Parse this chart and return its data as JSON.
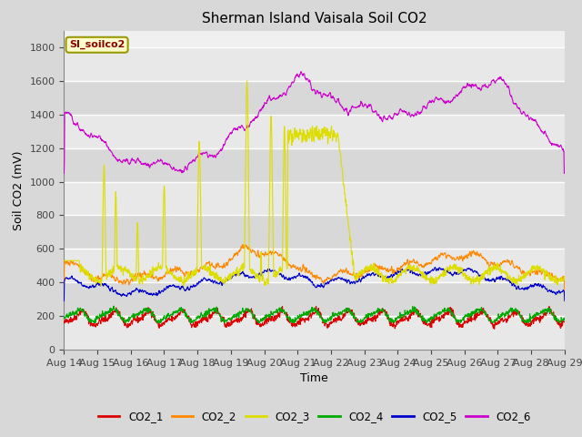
{
  "title": "Sherman Island Vaisala Soil CO2",
  "xlabel": "Time",
  "ylabel": "Soil CO2 (mV)",
  "ylim": [
    0,
    1900
  ],
  "yticks": [
    0,
    200,
    400,
    600,
    800,
    1000,
    1200,
    1400,
    1600,
    1800
  ],
  "x_labels": [
    "Aug 14",
    "Aug 15",
    "Aug 16",
    "Aug 17",
    "Aug 18",
    "Aug 19",
    "Aug 20",
    "Aug 21",
    "Aug 22",
    "Aug 23",
    "Aug 24",
    "Aug 25",
    "Aug 26",
    "Aug 27",
    "Aug 28",
    "Aug 29"
  ],
  "legend_label": "SI_soilco2",
  "series_colors": {
    "CO2_1": "#dd0000",
    "CO2_2": "#ff8800",
    "CO2_3": "#dddd00",
    "CO2_4": "#00aa00",
    "CO2_5": "#0000cc",
    "CO2_6": "#cc00cc"
  },
  "plot_bg_light": "#f0f0f0",
  "plot_bg_dark": "#e0e0e0",
  "grid_color": "#ffffff",
  "title_fontsize": 11,
  "axis_fontsize": 9,
  "tick_fontsize": 8
}
